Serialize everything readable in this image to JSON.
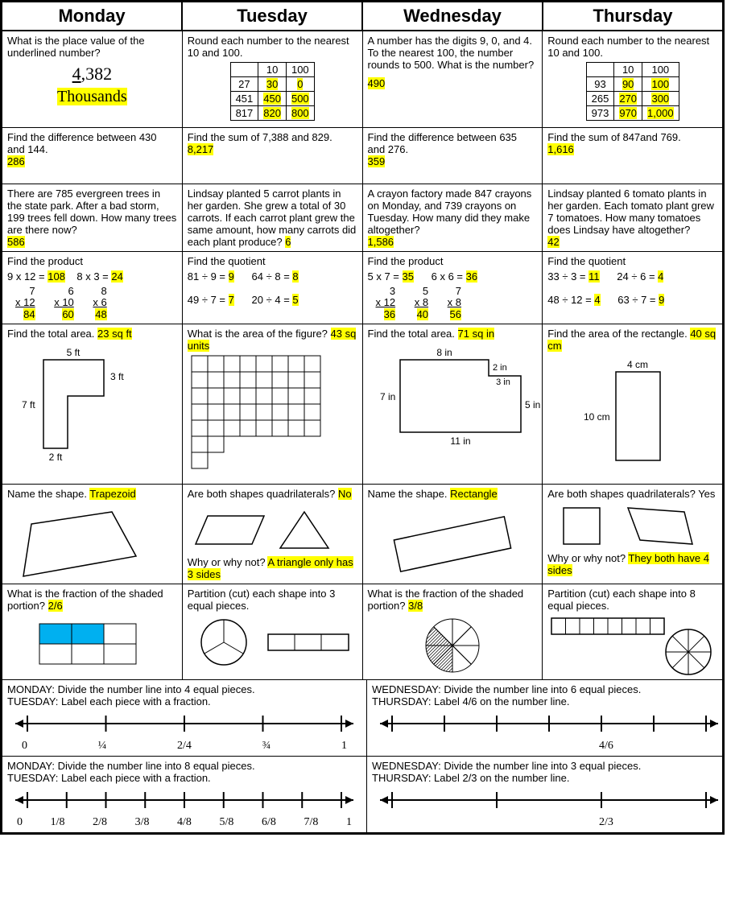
{
  "colors": {
    "highlight": "#ffff00",
    "shade_blue": "#00b0f0",
    "border": "#000000"
  },
  "headers": [
    "Monday",
    "Tuesday",
    "Wednesday",
    "Thursday"
  ],
  "r1": {
    "mon": {
      "q": "What is the place value of the underlined number?",
      "num_pre": "4",
      "num_post": ",382",
      "ans": "Thousands"
    },
    "tue": {
      "q": "Round each number to the nearest 10 and 100.",
      "cols": [
        "",
        "10",
        "100"
      ],
      "rows": [
        [
          "27",
          "30",
          "0"
        ],
        [
          "451",
          "450",
          "500"
        ],
        [
          "817",
          "820",
          "800"
        ]
      ]
    },
    "wed": {
      "q": "A number has the digits 9, 0, and 4.  To the nearest 100, the number rounds to 500. What is the number?",
      "ans": "490"
    },
    "thu": {
      "q": "Round each number to the nearest 10 and 100.",
      "cols": [
        "",
        "10",
        "100"
      ],
      "rows": [
        [
          "93",
          "90",
          "100"
        ],
        [
          "265",
          "270",
          "300"
        ],
        [
          "973",
          "970",
          "1,000"
        ]
      ]
    }
  },
  "r2": {
    "mon": {
      "q": "Find the difference between 430 and 144.",
      "ans": "286"
    },
    "tue": {
      "q": "Find the sum of 7,388 and 829.",
      "ans": "8,217"
    },
    "wed": {
      "q": "Find the difference between 635 and 276.",
      "ans": "359"
    },
    "thu": {
      "q": "Find the sum of 847and 769.",
      "ans": "1,616"
    }
  },
  "r3": {
    "mon": {
      "q": "There are 785 evergreen trees in the state park.  After a bad storm, 199 trees fell down.  How many trees are there now?",
      "ans": "586"
    },
    "tue": {
      "q": "Lindsay planted 5 carrot plants in her garden.  She grew a total of 30 carrots. If each carrot plant grew the same amount, how many carrots did each plant produce?",
      "ans": "6"
    },
    "wed": {
      "q": "A crayon factory made 847 crayons on Monday, and 739 crayons on Tuesday.  How many did they make altogether?",
      "ans": "1,586"
    },
    "thu": {
      "q": "Lindsay planted 6 tomato plants in her garden.  Each tomato plant grew 7 tomatoes.  How many tomatoes does Lindsay have altogether?",
      "ans": "42"
    }
  },
  "r4": {
    "mon": {
      "title": "Find the product",
      "h": [
        [
          "9 x 12 = ",
          "108"
        ],
        [
          "8 x 3 = ",
          "24"
        ]
      ],
      "v": [
        [
          "7",
          "x  12",
          "84"
        ],
        [
          "6",
          "x 10",
          "60"
        ],
        [
          "8",
          "x 6",
          "48"
        ]
      ]
    },
    "tue": {
      "title": "Find the quotient",
      "h1": [
        [
          "81 ÷ 9 = ",
          "9"
        ],
        [
          "64 ÷ 8 = ",
          "8"
        ]
      ],
      "h2": [
        [
          "49 ÷ 7 = ",
          "7"
        ],
        [
          "20 ÷ 4 = ",
          "5"
        ]
      ]
    },
    "wed": {
      "title": "Find the product",
      "h": [
        [
          "5 x 7 = ",
          "35"
        ],
        [
          "6 x 6 = ",
          "36"
        ]
      ],
      "v": [
        [
          "3",
          "x 12",
          "36"
        ],
        [
          "5",
          "x 8",
          "40"
        ],
        [
          "7",
          "x 8",
          "56"
        ]
      ]
    },
    "thu": {
      "title": "Find the quotient",
      "h1": [
        [
          "33 ÷ 3 = ",
          "11"
        ],
        [
          "24 ÷ 6 = ",
          "4"
        ]
      ],
      "h2": [
        [
          "48 ÷ 12 = ",
          "4"
        ],
        [
          "63 ÷ 7 = ",
          "9"
        ]
      ]
    }
  },
  "r5": {
    "mon": {
      "q": "Find the total area.",
      "ans": "23 sq ft",
      "dims": {
        "top": "5 ft",
        "right": "3 ft",
        "left": "7 ft",
        "bottom": "2 ft"
      }
    },
    "tue": {
      "q": "What is the area of the figure?",
      "ans": "43 sq units"
    },
    "wed": {
      "q": "Find the total area.",
      "ans": "71 sq in",
      "dims": {
        "top": "8 in",
        "cut_h": "2 in",
        "cut_v": "3 in",
        "right": "5 in",
        "left": "7 in",
        "bottom": "11 in"
      }
    },
    "thu": {
      "q": "Find the area of the rectangle.",
      "ans": "40 sq cm",
      "dims": {
        "top": "4 cm",
        "left": "10 cm"
      }
    }
  },
  "r6": {
    "mon": {
      "q": "Name the shape.",
      "ans": "Trapezoid"
    },
    "tue": {
      "q": "Are both shapes quadrilaterals?",
      "ans": "No",
      "q2": "Why or why not?",
      "ans2": "A triangle only has 3 sides"
    },
    "wed": {
      "q": "Name the shape.",
      "ans": "Rectangle"
    },
    "thu": {
      "q": "Are both shapes quadrilaterals?",
      "ans_plain": "Yes",
      "q2": "Why or why not?",
      "ans2": "They both have 4 sides"
    }
  },
  "r7": {
    "mon": {
      "q": "What is the fraction of the shaded portion?",
      "ans": "2/6"
    },
    "tue": {
      "q": "Partition (cut) each shape into 3 equal pieces."
    },
    "wed": {
      "q": "What is the fraction of the shaded portion?",
      "ans": "3/8"
    },
    "thu": {
      "q": "Partition (cut) each shape into 8 equal pieces."
    }
  },
  "nl1": {
    "left": {
      "l1": "MONDAY: Divide the number line into 4 equal pieces.",
      "l2": "TUESDAY: Label each piece with a fraction.",
      "labels": [
        "0",
        "¼",
        "2/4",
        "¾",
        "1"
      ]
    },
    "right": {
      "l1": "WEDNESDAY: Divide the number line into 6 equal pieces.",
      "l2": "THURSDAY: Label 4/6 on the number line.",
      "label": "4/6"
    }
  },
  "nl2": {
    "left": {
      "l1": "MONDAY: Divide the number line into 8 equal pieces.",
      "l2": "TUESDAY: Label each piece with a fraction.",
      "labels": [
        "0",
        "1/8",
        "2/8",
        "3/8",
        "4/8",
        "5/8",
        "6/8",
        "7/8",
        "1"
      ]
    },
    "right": {
      "l1": "WEDNESDAY: Divide the number line into 3 equal pieces.",
      "l2": "THURSDAY: Label 2/3 on the number line.",
      "label": "2/3"
    }
  }
}
